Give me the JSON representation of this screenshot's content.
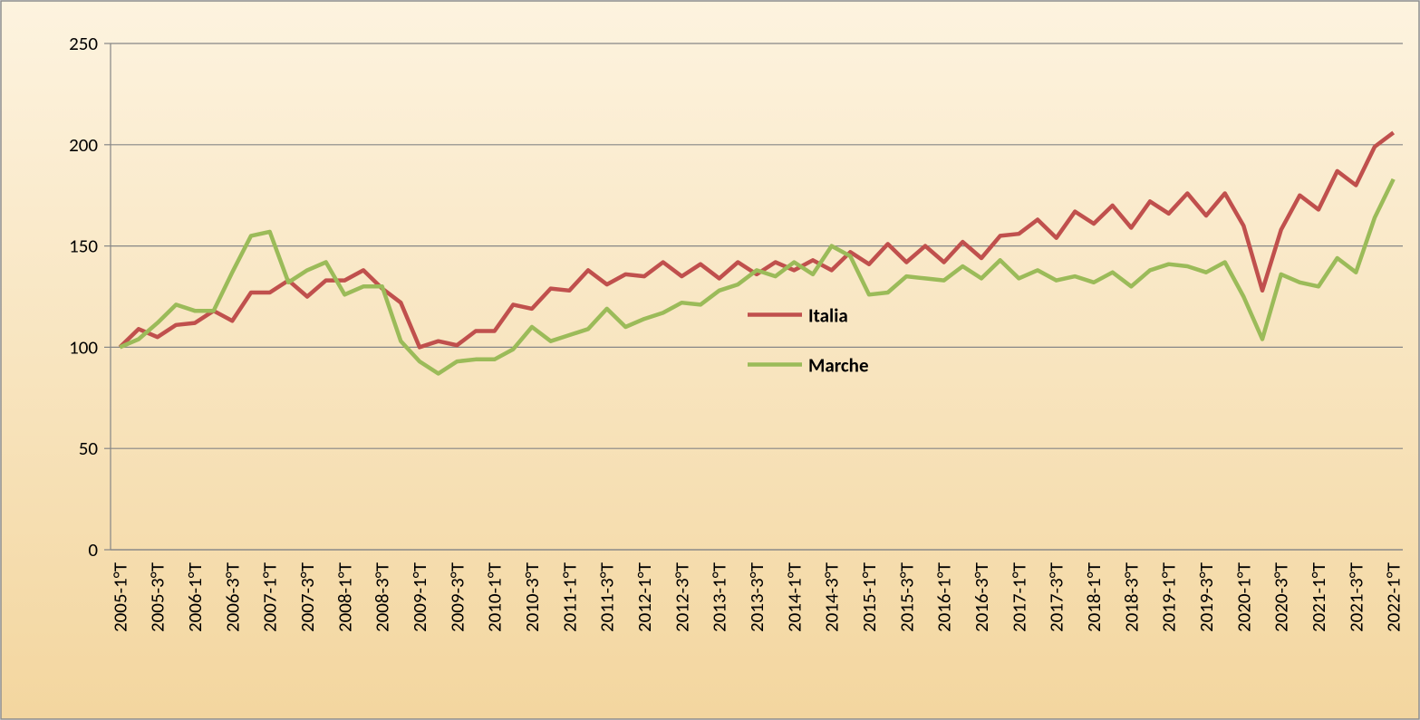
{
  "chart_data": {
    "type": "line",
    "categories": [
      "2005-1°T",
      null,
      "2005-3°T",
      null,
      "2006-1°T",
      null,
      "2006-3°T",
      null,
      "2007-1°T",
      null,
      "2007-3°T",
      null,
      "2008-1°T",
      null,
      "2008-3°T",
      null,
      "2009-1°T",
      null,
      "2009-3°T",
      null,
      "2010-1°T",
      null,
      "2010-3°T",
      null,
      "2011-1°T",
      null,
      "2011-3°T",
      null,
      "2012-1°T",
      null,
      "2012-3°T",
      null,
      "2013-1°T",
      null,
      "2013-3°T",
      null,
      "2014-1°T",
      null,
      "2014-3°T",
      null,
      "2015-1°T",
      null,
      "2015-3°T",
      null,
      "2016-1°T",
      null,
      "2016-3°T",
      null,
      "2017-1°T",
      null,
      "2017-3°T",
      null,
      "2018-1°T",
      null,
      "2018-3°T",
      null,
      "2019-1°T",
      null,
      "2019-3°T",
      null,
      "2020-1°T",
      null,
      "2020-3°T",
      null,
      "2021-1°T",
      null,
      "2021-3°T",
      null,
      "2022-1°T"
    ],
    "series": [
      {
        "name": "Italia",
        "color": "#c0504d",
        "values": [
          100,
          109,
          105,
          111,
          112,
          118,
          113,
          127,
          127,
          133,
          125,
          133,
          133,
          138,
          129,
          122,
          100,
          103,
          101,
          108,
          108,
          121,
          119,
          129,
          128,
          138,
          131,
          136,
          135,
          142,
          135,
          141,
          134,
          142,
          136,
          142,
          138,
          143,
          138,
          147,
          141,
          151,
          142,
          150,
          142,
          152,
          144,
          155,
          156,
          163,
          154,
          167,
          161,
          170,
          159,
          172,
          166,
          176,
          165,
          176,
          160,
          128,
          158,
          175,
          168,
          187,
          180,
          199,
          206
        ]
      },
      {
        "name": "Marche",
        "color": "#9bbb59",
        "values": [
          100,
          104,
          112,
          121,
          118,
          118,
          137,
          155,
          157,
          132,
          138,
          142,
          126,
          130,
          130,
          103,
          93,
          87,
          93,
          94,
          94,
          99,
          110,
          103,
          106,
          109,
          119,
          110,
          114,
          117,
          122,
          121,
          128,
          131,
          138,
          135,
          142,
          136,
          150,
          145,
          126,
          127,
          135,
          134,
          133,
          140,
          134,
          143,
          134,
          138,
          133,
          135,
          132,
          137,
          130,
          138,
          141,
          140,
          137,
          142,
          125,
          104,
          136,
          132,
          130,
          144,
          137,
          164,
          183
        ]
      }
    ],
    "ylim": [
      0,
      250
    ],
    "yticks": [
      0,
      50,
      100,
      150,
      200,
      250
    ],
    "grid": true,
    "legend": "center"
  }
}
